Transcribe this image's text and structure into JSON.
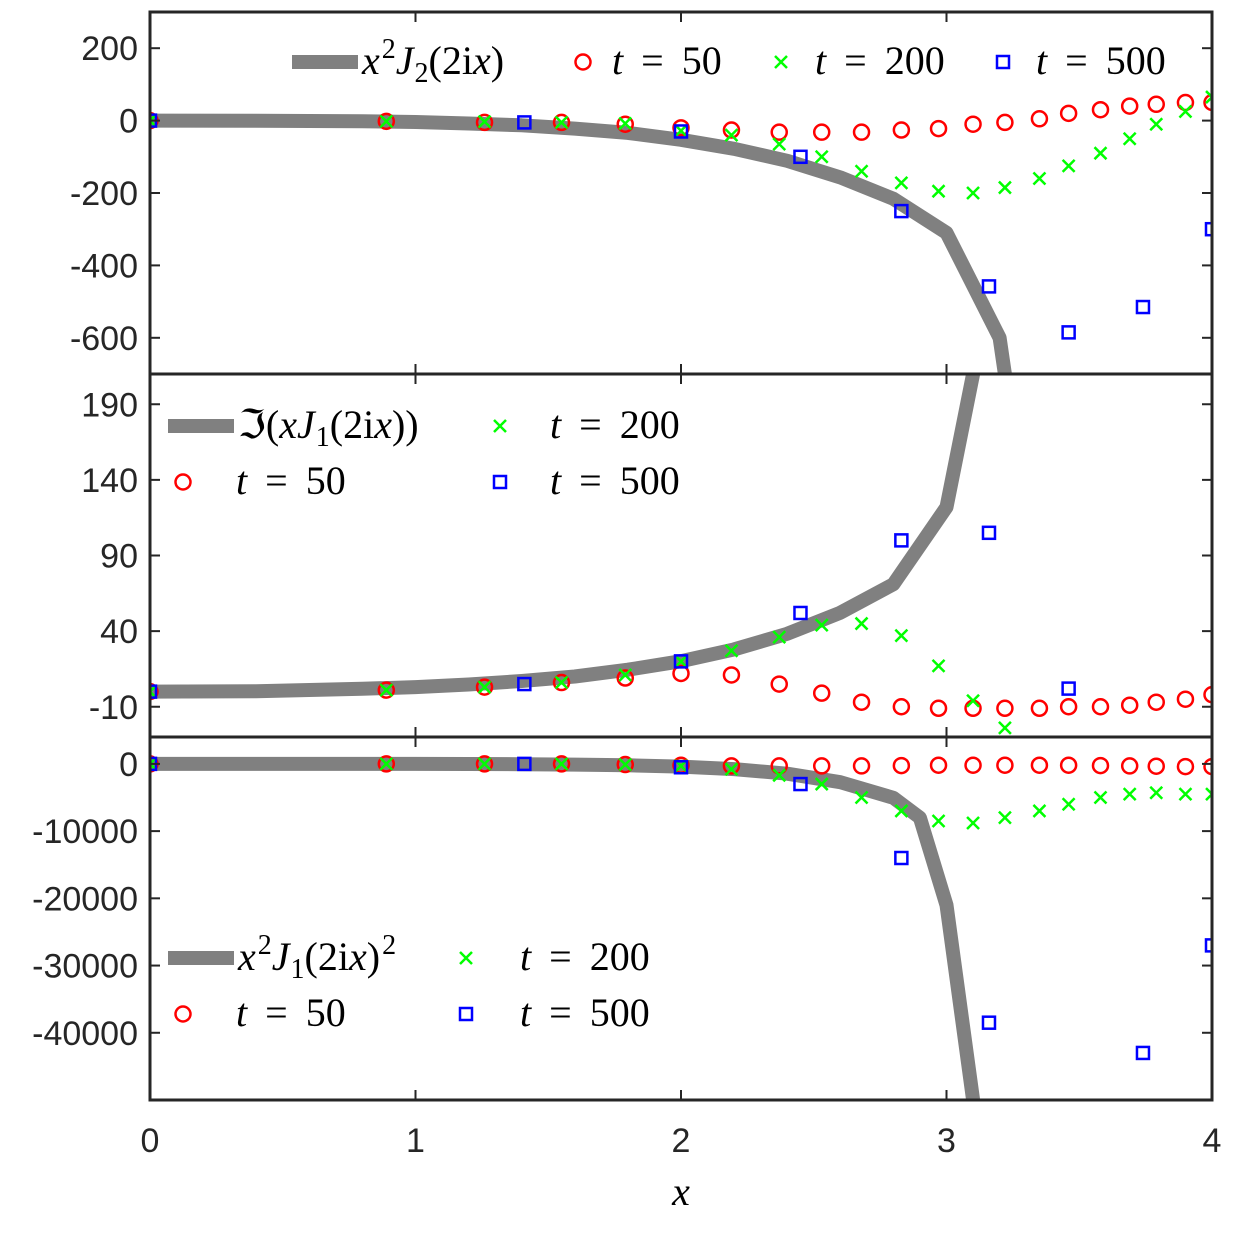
{
  "chart_data": [
    {
      "type": "scatter",
      "panel": "top",
      "ylim": [
        -700,
        300
      ],
      "yticks": [
        200,
        0,
        -200,
        -400,
        -600
      ],
      "ytick_labels": [
        "200",
        "0",
        "-200",
        "-400",
        "-600"
      ],
      "legend_placement": "top-right",
      "curve": {
        "name": "x^2 J_2(2ix)",
        "label_parts": [
          "x",
          "2",
          "J",
          "2",
          "(2i",
          "x",
          ")"
        ],
        "x": [
          0,
          0.4,
          0.8,
          1.0,
          1.2,
          1.4,
          1.6,
          1.8,
          2.0,
          2.2,
          2.4,
          2.6,
          2.8,
          3.0,
          3.2,
          3.22
        ],
        "y": [
          0,
          -0.2,
          -2,
          -4,
          -8,
          -13,
          -22,
          -34,
          -53,
          -78,
          -111,
          -157,
          -216,
          -310,
          -600,
          -700
        ]
      },
      "series": [
        {
          "name": "t = 50",
          "label_parts": [
            "t",
            "=",
            "50"
          ],
          "marker": "circle",
          "x": [
            0,
            0.89,
            1.26,
            1.55,
            1.79,
            2.0,
            2.19,
            2.37,
            2.53,
            2.68,
            2.83,
            2.97,
            3.1,
            3.22,
            3.35,
            3.46,
            3.58,
            3.69,
            3.79,
            3.9,
            4.0
          ],
          "y": [
            0,
            -2,
            -5,
            -5,
            -10,
            -20,
            -26,
            -32,
            -32,
            -32,
            -26,
            -22,
            -10,
            -5,
            5,
            20,
            30,
            40,
            45,
            50,
            50
          ]
        },
        {
          "name": "t = 200",
          "label_parts": [
            "t",
            "=",
            "200"
          ],
          "marker": "x",
          "x": [
            0,
            0.89,
            1.26,
            1.55,
            1.79,
            2.0,
            2.19,
            2.37,
            2.53,
            2.68,
            2.83,
            2.97,
            3.1,
            3.22,
            3.35,
            3.46,
            3.58,
            3.69,
            3.79,
            3.9,
            4.0
          ],
          "y": [
            0,
            -2,
            -3,
            -5,
            -8,
            -28,
            -40,
            -65,
            -100,
            -140,
            -172,
            -195,
            -200,
            -185,
            -160,
            -125,
            -90,
            -50,
            -10,
            25,
            65
          ]
        },
        {
          "name": "t = 500",
          "label_parts": [
            "t",
            "=",
            "500"
          ],
          "marker": "square",
          "x": [
            0,
            1.41,
            2.0,
            2.45,
            2.83,
            3.16,
            3.46,
            3.74,
            4.0
          ],
          "y": [
            0,
            -5,
            -30,
            -100,
            -250,
            -458,
            -585,
            -515,
            -300
          ]
        }
      ]
    },
    {
      "type": "scatter",
      "panel": "middle",
      "ylim": [
        -30,
        210
      ],
      "yticks": [
        190,
        140,
        90,
        40,
        -10
      ],
      "ytick_labels": [
        "190",
        "140",
        "90",
        "40",
        "-10"
      ],
      "legend_placement": "top-left",
      "curve": {
        "name": "Im(x J_1(2ix))",
        "label_parts": [
          "ℑ",
          "(",
          "x",
          "J",
          "1",
          "(2i",
          "x",
          "))"
        ],
        "x": [
          0,
          0.4,
          0.8,
          1.0,
          1.2,
          1.4,
          1.6,
          1.8,
          2.0,
          2.2,
          2.4,
          2.6,
          2.8,
          3.0,
          3.1
        ],
        "y": [
          0,
          0.3,
          1.9,
          3.0,
          4.7,
          7.0,
          10.0,
          14.5,
          20.1,
          27.9,
          38.2,
          52.2,
          71.0,
          122,
          210
        ]
      },
      "series": [
        {
          "name": "t = 50",
          "label_parts": [
            "t",
            "=",
            "50"
          ],
          "marker": "circle",
          "x": [
            0,
            0.89,
            1.26,
            1.55,
            1.79,
            2.0,
            2.19,
            2.37,
            2.53,
            2.68,
            2.83,
            2.97,
            3.1,
            3.22,
            3.35,
            3.46,
            3.58,
            3.69,
            3.79,
            3.9,
            4.0
          ],
          "y": [
            0,
            1,
            3,
            6,
            9,
            12,
            11,
            5,
            -1,
            -7,
            -10,
            -11,
            -11,
            -11,
            -11,
            -10,
            -10,
            -9,
            -7,
            -5,
            -2
          ]
        },
        {
          "name": "t = 200",
          "label_parts": [
            "t",
            "=",
            "200"
          ],
          "marker": "x",
          "x": [
            0,
            0.89,
            1.26,
            1.55,
            1.79,
            2.0,
            2.19,
            2.37,
            2.53,
            2.68,
            2.83,
            2.97,
            3.1,
            3.22
          ],
          "y": [
            0,
            1,
            3,
            6,
            11,
            20,
            27,
            36,
            44,
            45,
            37,
            17,
            -6,
            -24
          ]
        },
        {
          "name": "t = 500",
          "label_parts": [
            "t",
            "=",
            "500"
          ],
          "marker": "square",
          "x": [
            0,
            1.41,
            2.0,
            2.45,
            2.83,
            3.16,
            3.46
          ],
          "y": [
            0,
            5,
            20,
            52,
            100,
            105,
            2
          ]
        }
      ]
    },
    {
      "type": "scatter",
      "panel": "bottom",
      "xlim": [
        0,
        4
      ],
      "ylim": [
        -50000,
        4000
      ],
      "yticks": [
        0,
        -10000,
        -20000,
        -30000,
        -40000
      ],
      "ytick_labels": [
        "0",
        "-10000",
        "-20000",
        "-30000",
        "-40000"
      ],
      "xticks": [
        0,
        1,
        2,
        3,
        4
      ],
      "xtick_labels": [
        "0",
        "1",
        "2",
        "3",
        "4"
      ],
      "xlabel": "x",
      "legend_placement": "bottom-left",
      "curve": {
        "name": "x^2 J_1(2ix)^2",
        "label_parts": [
          "x",
          "2",
          "J",
          "1",
          "(2i",
          "x",
          ")",
          "2"
        ],
        "x": [
          0,
          0.4,
          0.8,
          1.0,
          1.2,
          1.4,
          1.6,
          1.8,
          2.0,
          2.2,
          2.4,
          2.6,
          2.8,
          2.9,
          3.0,
          3.1
        ],
        "y": [
          0,
          -0.1,
          -3.7,
          -9,
          -22,
          -49,
          -100,
          -210,
          -404,
          -778,
          -1460,
          -2720,
          -5040,
          -8000,
          -21000,
          -50000
        ]
      },
      "series": [
        {
          "name": "t = 50",
          "label_parts": [
            "t",
            "=",
            "50"
          ],
          "marker": "circle",
          "x": [
            0,
            0.89,
            1.26,
            1.55,
            1.79,
            2.0,
            2.19,
            2.37,
            2.53,
            2.68,
            2.83,
            2.97,
            3.1,
            3.22,
            3.35,
            3.46,
            3.58,
            3.69,
            3.79,
            3.9,
            4.0
          ],
          "y": [
            0,
            0,
            0,
            0,
            -100,
            -200,
            -300,
            -300,
            -300,
            -300,
            -250,
            -200,
            -200,
            -200,
            -200,
            -200,
            -250,
            -300,
            -350,
            -400,
            -400
          ]
        },
        {
          "name": "t = 200",
          "label_parts": [
            "t",
            "=",
            "200"
          ],
          "marker": "x",
          "x": [
            0,
            0.89,
            1.26,
            1.55,
            1.79,
            2.0,
            2.19,
            2.37,
            2.53,
            2.68,
            2.83,
            2.97,
            3.1,
            3.22,
            3.35,
            3.46,
            3.58,
            3.69,
            3.79,
            3.9,
            4.0
          ],
          "y": [
            0,
            0,
            0,
            0,
            -100,
            -300,
            -800,
            -1700,
            -3000,
            -5000,
            -7000,
            -8500,
            -8800,
            -8000,
            -7000,
            -6000,
            -5000,
            -4500,
            -4300,
            -4500,
            -4500
          ]
        },
        {
          "name": "t = 500",
          "label_parts": [
            "t",
            "=",
            "500"
          ],
          "marker": "square",
          "x": [
            0,
            1.41,
            2.0,
            2.45,
            2.83,
            3.16,
            3.74,
            4.0
          ],
          "y": [
            0,
            0,
            -500,
            -3000,
            -14000,
            -38500,
            -43000,
            -27000
          ]
        }
      ]
    }
  ],
  "colors": {
    "curve": "#808080",
    "t50": "#ff0000",
    "t200": "#00ff00",
    "t500": "#0000ff",
    "axis": "#262626"
  }
}
